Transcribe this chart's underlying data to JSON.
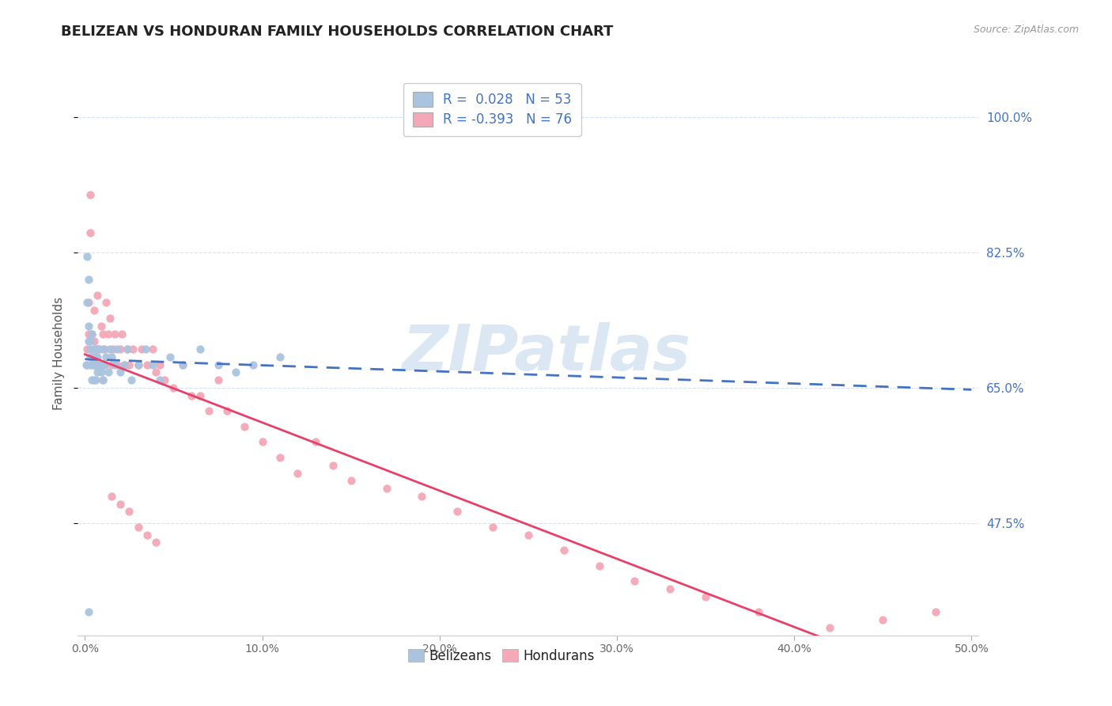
{
  "title": "BELIZEAN VS HONDURAN FAMILY HOUSEHOLDS CORRELATION CHART",
  "source": "Source: ZipAtlas.com",
  "xlabel_belizean": "Belizeans",
  "xlabel_honduran": "Hondurans",
  "ylabel": "Family Households",
  "xlim": [
    -0.004,
    0.504
  ],
  "ylim": [
    0.33,
    1.06
  ],
  "xticks": [
    0.0,
    0.1,
    0.2,
    0.3,
    0.4,
    0.5
  ],
  "xtick_labels": [
    "0.0%",
    "10.0%",
    "20.0%",
    "30.0%",
    "40.0%",
    "50.0%"
  ],
  "yticks": [
    0.475,
    0.65,
    0.825,
    1.0
  ],
  "ytick_labels": [
    "47.5%",
    "65.0%",
    "82.5%",
    "100.0%"
  ],
  "belizean_color": "#aac4e0",
  "honduran_color": "#f4a8b8",
  "belizean_line_color": "#4472c4",
  "honduran_line_color": "#e8406a",
  "R_belizean": 0.028,
  "N_belizean": 53,
  "R_honduran": -0.393,
  "N_honduran": 76,
  "watermark": "ZIPatlas",
  "watermark_color": "#c5d8ee",
  "grid_color": "#d5e0f0",
  "background_color": "#ffffff",
  "title_fontsize": 13,
  "axis_label_fontsize": 11,
  "tick_fontsize": 10,
  "legend_fontsize": 12,
  "belizean_x": [
    0.0005,
    0.001,
    0.001,
    0.002,
    0.002,
    0.002,
    0.003,
    0.003,
    0.003,
    0.003,
    0.004,
    0.004,
    0.004,
    0.004,
    0.005,
    0.005,
    0.005,
    0.005,
    0.006,
    0.006,
    0.006,
    0.007,
    0.007,
    0.007,
    0.008,
    0.008,
    0.009,
    0.009,
    0.01,
    0.01,
    0.011,
    0.012,
    0.013,
    0.014,
    0.015,
    0.017,
    0.018,
    0.02,
    0.022,
    0.024,
    0.026,
    0.03,
    0.034,
    0.038,
    0.042,
    0.048,
    0.055,
    0.065,
    0.075,
    0.085,
    0.095,
    0.11,
    0.002
  ],
  "belizean_y": [
    0.68,
    0.82,
    0.76,
    0.79,
    0.73,
    0.71,
    0.7,
    0.69,
    0.71,
    0.68,
    0.72,
    0.69,
    0.66,
    0.68,
    0.7,
    0.68,
    0.66,
    0.69,
    0.7,
    0.68,
    0.66,
    0.69,
    0.7,
    0.67,
    0.68,
    0.7,
    0.67,
    0.68,
    0.66,
    0.7,
    0.68,
    0.69,
    0.67,
    0.7,
    0.69,
    0.68,
    0.7,
    0.67,
    0.68,
    0.7,
    0.66,
    0.68,
    0.7,
    0.68,
    0.66,
    0.69,
    0.68,
    0.7,
    0.68,
    0.67,
    0.68,
    0.69,
    0.36
  ],
  "honduran_x": [
    0.001,
    0.001,
    0.002,
    0.002,
    0.003,
    0.003,
    0.004,
    0.004,
    0.005,
    0.005,
    0.005,
    0.006,
    0.006,
    0.007,
    0.007,
    0.008,
    0.008,
    0.009,
    0.01,
    0.01,
    0.011,
    0.011,
    0.012,
    0.013,
    0.014,
    0.015,
    0.016,
    0.017,
    0.018,
    0.02,
    0.021,
    0.022,
    0.024,
    0.025,
    0.027,
    0.03,
    0.032,
    0.035,
    0.038,
    0.04,
    0.042,
    0.045,
    0.05,
    0.055,
    0.06,
    0.065,
    0.07,
    0.075,
    0.08,
    0.09,
    0.1,
    0.11,
    0.12,
    0.13,
    0.14,
    0.15,
    0.17,
    0.19,
    0.21,
    0.23,
    0.25,
    0.27,
    0.29,
    0.31,
    0.33,
    0.35,
    0.38,
    0.42,
    0.45,
    0.48,
    0.015,
    0.02,
    0.025,
    0.03,
    0.035,
    0.04
  ],
  "honduran_y": [
    0.7,
    0.68,
    0.76,
    0.72,
    0.85,
    0.9,
    0.72,
    0.69,
    0.68,
    0.71,
    0.75,
    0.68,
    0.7,
    0.77,
    0.68,
    0.7,
    0.68,
    0.73,
    0.66,
    0.72,
    0.68,
    0.7,
    0.76,
    0.72,
    0.74,
    0.68,
    0.7,
    0.72,
    0.68,
    0.7,
    0.72,
    0.68,
    0.7,
    0.68,
    0.7,
    0.68,
    0.7,
    0.68,
    0.7,
    0.67,
    0.68,
    0.66,
    0.65,
    0.68,
    0.64,
    0.64,
    0.62,
    0.66,
    0.62,
    0.6,
    0.58,
    0.56,
    0.54,
    0.58,
    0.55,
    0.53,
    0.52,
    0.51,
    0.49,
    0.47,
    0.46,
    0.44,
    0.42,
    0.4,
    0.39,
    0.38,
    0.36,
    0.34,
    0.35,
    0.36,
    0.51,
    0.5,
    0.49,
    0.47,
    0.46,
    0.45
  ]
}
